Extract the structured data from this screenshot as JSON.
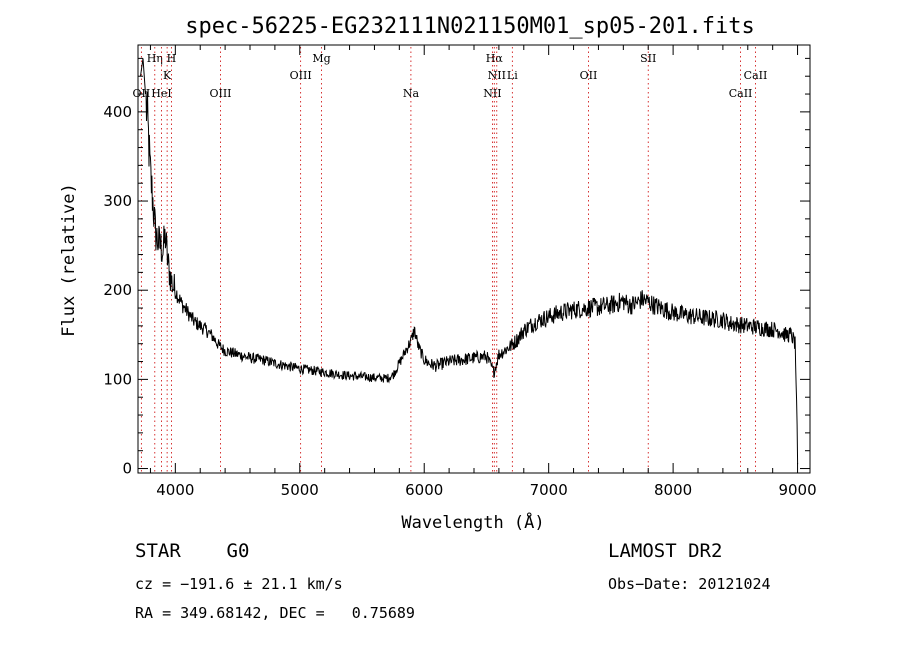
{
  "chart_data": {
    "type": "line",
    "title": "spec-56225-EG232111N021150M01_sp05-201.fits",
    "xlabel": "Wavelength (Å)",
    "ylabel": "Flux (relative)",
    "xlim": [
      3700,
      9100
    ],
    "ylim": [
      -5,
      475
    ],
    "xticks": [
      4000,
      5000,
      6000,
      7000,
      8000,
      9000
    ],
    "yticks": [
      0,
      100,
      200,
      300,
      400
    ],
    "grid": false,
    "line_color": "#000000",
    "marker_color": "#cc0000",
    "spectrum": {
      "x": [
        3720,
        3740,
        3760,
        3780,
        3800,
        3820,
        3840,
        3860,
        3880,
        3900,
        3920,
        3940,
        3960,
        3980,
        4000,
        4050,
        4100,
        4150,
        4200,
        4250,
        4300,
        4350,
        4400,
        4450,
        4500,
        4550,
        4600,
        4700,
        4800,
        4900,
        5000,
        5100,
        5200,
        5300,
        5400,
        5500,
        5600,
        5700,
        5750,
        5800,
        5850,
        5900,
        5920,
        5950,
        6000,
        6050,
        6100,
        6150,
        6200,
        6300,
        6400,
        6500,
        6560,
        6600,
        6650,
        6700,
        6750,
        6800,
        6900,
        7000,
        7100,
        7200,
        7300,
        7400,
        7500,
        7600,
        7650,
        7700,
        7750,
        7800,
        7850,
        7900,
        8000,
        8100,
        8200,
        8300,
        8400,
        8450,
        8500,
        8550,
        8600,
        8650,
        8700,
        8750,
        8800,
        8850,
        8900,
        8950,
        8980,
        8995,
        9000
      ],
      "y": [
        440,
        460,
        420,
        380,
        330,
        300,
        265,
        255,
        250,
        245,
        260,
        230,
        215,
        205,
        200,
        185,
        175,
        165,
        160,
        155,
        148,
        138,
        132,
        130,
        128,
        126,
        124,
        122,
        118,
        115,
        112,
        110,
        108,
        106,
        104,
        103,
        102,
        101,
        105,
        118,
        132,
        145,
        156,
        138,
        122,
        117,
        115,
        118,
        120,
        122,
        124,
        126,
        108,
        128,
        133,
        138,
        145,
        155,
        165,
        170,
        175,
        178,
        180,
        181,
        183,
        188,
        183,
        185,
        190,
        187,
        183,
        180,
        175,
        172,
        170,
        168,
        167,
        163,
        162,
        161,
        160,
        159,
        158,
        157,
        156,
        155,
        150,
        150,
        140,
        60,
        5
      ]
    },
    "lines": [
      {
        "label": "OII",
        "x": 3727,
        "row": 3
      },
      {
        "label": "Hη",
        "x": 3835,
        "row": 1
      },
      {
        "label": "HeI",
        "x": 3889,
        "row": 3
      },
      {
        "label": "K",
        "x": 3934,
        "row": 2
      },
      {
        "label": "H",
        "x": 3969,
        "row": 1
      },
      {
        "label": "OIII",
        "x": 4363,
        "row": 3
      },
      {
        "label": "OIII",
        "x": 5007,
        "row": 2
      },
      {
        "label": "Mg",
        "x": 5175,
        "row": 1
      },
      {
        "label": "Na",
        "x": 5893,
        "row": 3
      },
      {
        "label": "Hα",
        "x": 6563,
        "row": 1
      },
      {
        "label": "NII",
        "x": 6548,
        "row": 3
      },
      {
        "label": "NII",
        "x": 6583,
        "row": 2
      },
      {
        "label": "Li",
        "x": 6708,
        "row": 2
      },
      {
        "label": "OII",
        "x": 7320,
        "row": 2
      },
      {
        "label": "SII",
        "x": 7800,
        "row": 1
      },
      {
        "label": "CaII",
        "x": 8542,
        "row": 3
      },
      {
        "label": "CaII",
        "x": 8662,
        "row": 2
      }
    ]
  },
  "info": {
    "class": "STAR    G0",
    "survey": "LAMOST DR2",
    "cz": "cz = −191.6 ± 21.1 km/s",
    "obs_date": "Obs−Date: 20121024",
    "coords": "RA = 349.68142, DEC =   0.75689"
  }
}
